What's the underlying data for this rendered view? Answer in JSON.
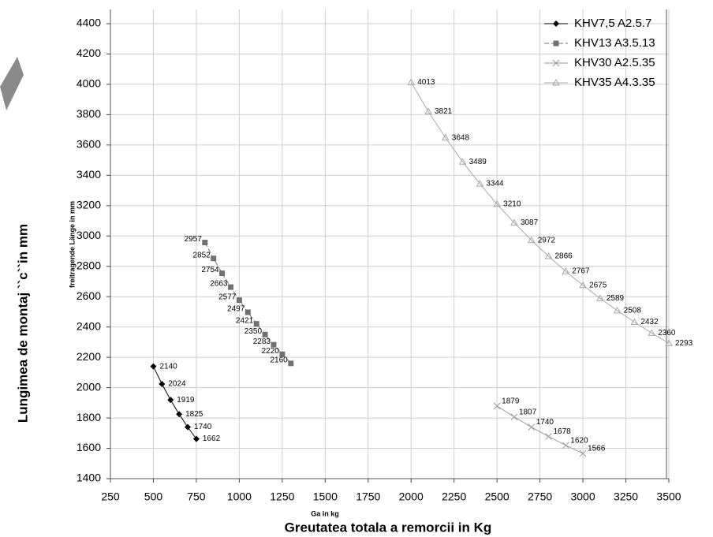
{
  "chart_data": {
    "type": "line",
    "x_label": "Greutatea totala a remorcii in Kg",
    "x_sublabel": "Ga in kg",
    "y_label": "Lungimea de montaj ``c``in mm",
    "y_sublabel": "freitragende Länge in mm",
    "xlim": [
      250,
      3500
    ],
    "xticks": [
      250,
      500,
      750,
      1000,
      1250,
      1500,
      1750,
      2000,
      2250,
      2500,
      2750,
      3000,
      3250,
      3500
    ],
    "ylim": [
      1400,
      4400
    ],
    "yticks": [
      1400,
      1600,
      1800,
      2000,
      2200,
      2400,
      2600,
      2800,
      3000,
      3200,
      3400,
      3600,
      3800,
      4000,
      4200,
      4400
    ],
    "grid": true,
    "legend": "upper right",
    "series": [
      {
        "name": "KHV7,5 A2.5.7",
        "color": "#000000",
        "marker": "diamond",
        "x": [
          500,
          550,
          600,
          650,
          700,
          750
        ],
        "values": [
          2140,
          2024,
          1919,
          1825,
          1740,
          1662
        ]
      },
      {
        "name": "KHV13 A3.5.13",
        "color": "#707070",
        "marker": "square",
        "x": [
          800,
          850,
          900,
          950,
          1000,
          1050,
          1100,
          1150,
          1200,
          1250,
          1300
        ],
        "values": [
          2957,
          2852,
          2754,
          2663,
          2577,
          2497,
          2421,
          2350,
          2283,
          2220,
          2160
        ]
      },
      {
        "name": "KHV30 A2.5.35",
        "color": "#9a9a9a",
        "marker": "cross",
        "x": [
          2500,
          2600,
          2700,
          2800,
          2900,
          3000
        ],
        "values": [
          1879,
          1807,
          1740,
          1678,
          1620,
          1566
        ]
      },
      {
        "name": "KHV35 A4.3.35",
        "color": "#a8a8a8",
        "marker": "triangle",
        "x": [
          2000,
          2100,
          2200,
          2300,
          2400,
          2500,
          2600,
          2700,
          2800,
          2900,
          3000,
          3100,
          3200,
          3300,
          3400,
          3500
        ],
        "values": [
          4013,
          3821,
          3648,
          3489,
          3344,
          3210,
          3087,
          2972,
          2866,
          2767,
          2675,
          2589,
          2508,
          2432,
          2360,
          2293
        ]
      }
    ]
  }
}
